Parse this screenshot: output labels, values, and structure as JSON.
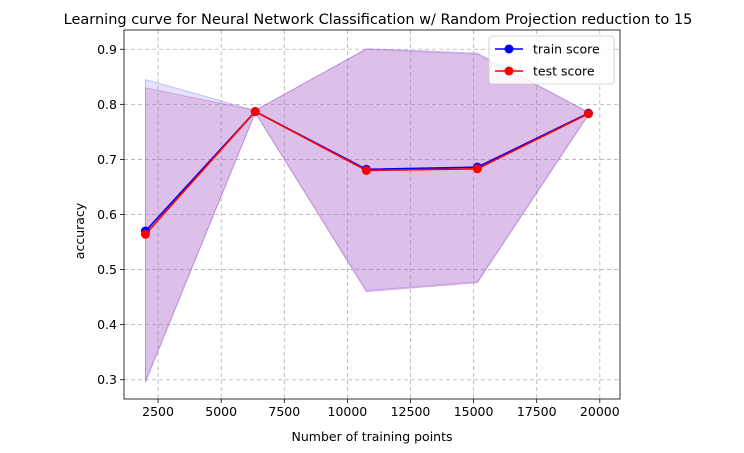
{
  "chart_data": {
    "type": "line",
    "title": "Learning curve for Neural Network Classification w/ Random Projection reduction to 15",
    "xlabel": "Number of training points",
    "ylabel": "accuracy",
    "xlim": [
      1150,
      20800
    ],
    "ylim": [
      0.265,
      0.935
    ],
    "xticks": [
      2500,
      5000,
      7500,
      10000,
      12500,
      15000,
      17500,
      20000
    ],
    "yticks": [
      0.3,
      0.4,
      0.5,
      0.6,
      0.7,
      0.8,
      0.9
    ],
    "grid": true,
    "legend_position": "top-right",
    "x": [
      2000,
      6350,
      10750,
      15150,
      19550
    ],
    "series": [
      {
        "name": "train score",
        "color": "#0000ff",
        "values": [
          0.57,
          0.787,
          0.682,
          0.686,
          0.784
        ],
        "band_upper": [
          0.845,
          0.789,
          0.901,
          0.893,
          0.786
        ],
        "band_lower": [
          0.295,
          0.785,
          0.462,
          0.478,
          0.782
        ],
        "band_color": "#7f7fff"
      },
      {
        "name": "test score",
        "color": "#ff0000",
        "values": [
          0.564,
          0.787,
          0.68,
          0.683,
          0.783
        ],
        "band_upper": [
          0.83,
          0.789,
          0.9,
          0.891,
          0.785
        ],
        "band_lower": [
          0.298,
          0.785,
          0.46,
          0.476,
          0.781
        ],
        "band_color": "#c864b4"
      }
    ]
  }
}
